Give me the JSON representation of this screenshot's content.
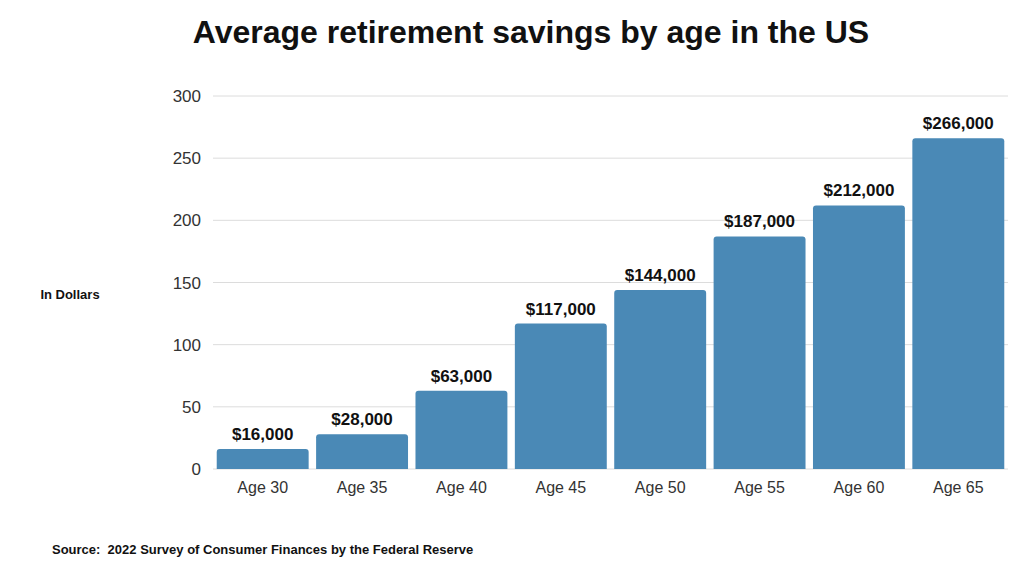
{
  "chart_data": {
    "type": "bar",
    "title": "Average retirement savings by age in the US",
    "ylabel": "In Dollars",
    "source": "Source:  2022 Survey of Consumer Finances by the Federal Reserve",
    "categories": [
      "Age 30",
      "Age 35",
      "Age 40",
      "Age 45",
      "Age 50",
      "Age 55",
      "Age 60",
      "Age 65"
    ],
    "values": [
      16,
      28,
      63,
      117,
      144,
      187,
      212,
      266
    ],
    "value_labels": [
      "$16,000",
      "$28,000",
      "$63,000",
      "$117,000",
      "$144,000",
      "$187,000",
      "$212,000",
      "$266,000"
    ],
    "color": "#4a89b6",
    "ylim": [
      0,
      300
    ],
    "yticks": [
      0,
      50,
      100,
      150,
      200,
      250,
      300
    ],
    "grid": true,
    "data_labels": true
  }
}
